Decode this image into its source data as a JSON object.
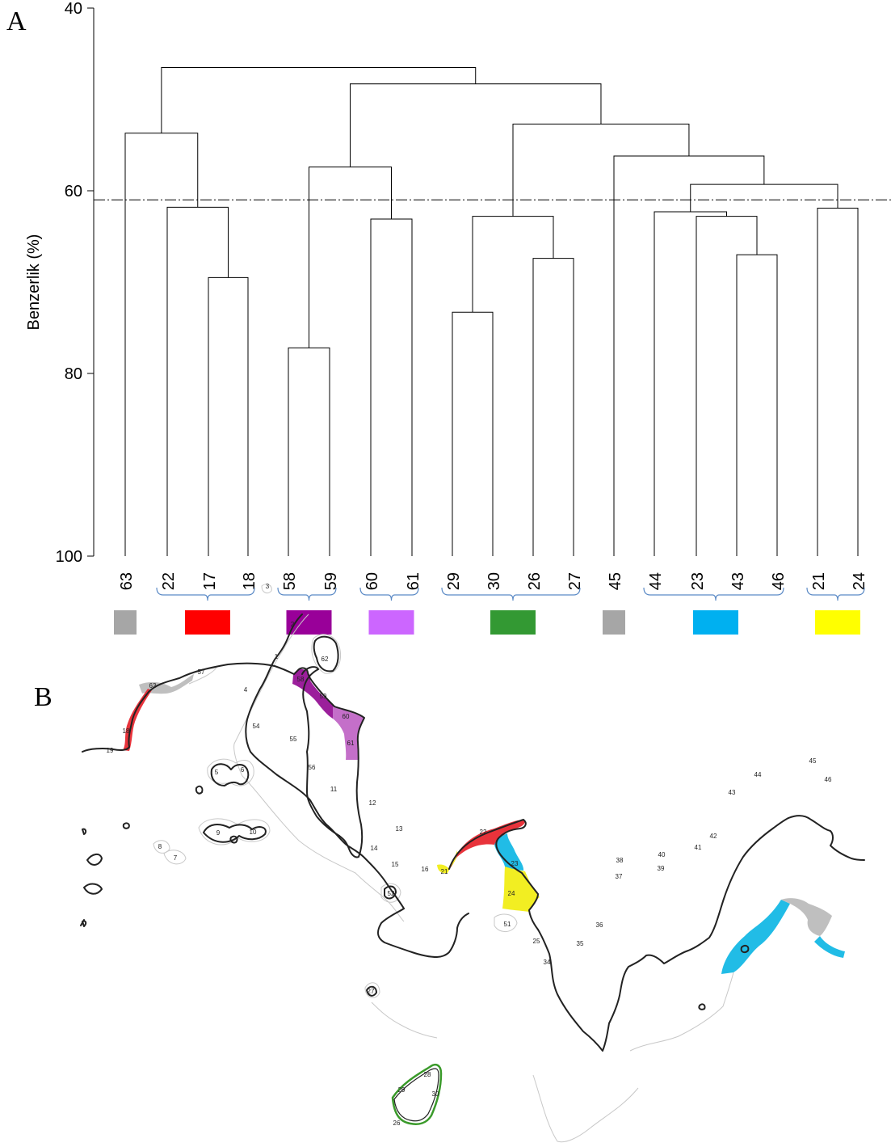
{
  "panels": {
    "a_label": "A",
    "b_label": "B"
  },
  "dendrogram": {
    "ylabel": "Benzerlik (%)",
    "ylim": [
      40,
      100
    ],
    "y_ticks": [
      "40",
      "60",
      "80",
      "100"
    ],
    "cutoff": 61,
    "leaves": [
      "63",
      "22",
      "17",
      "18",
      "58",
      "59",
      "60",
      "61",
      "29",
      "30",
      "26",
      "27",
      "45",
      "44",
      "23",
      "43",
      "46",
      "21",
      "24"
    ],
    "merges": [
      {
        "a": "L17",
        "b": "L18",
        "h": 69.5
      },
      {
        "a": "L22",
        "b": "M0",
        "h": 61.8
      },
      {
        "a": "L63",
        "b": "M1",
        "h": 53.7
      },
      {
        "a": "L58",
        "b": "L59",
        "h": 77.2
      },
      {
        "a": "L60",
        "b": "L61",
        "h": 63.1
      },
      {
        "a": "M3",
        "b": "M4",
        "h": 57.4
      },
      {
        "a": "L29",
        "b": "L30",
        "h": 73.3
      },
      {
        "a": "L26",
        "b": "L27",
        "h": 67.4
      },
      {
        "a": "M6",
        "b": "M7",
        "h": 62.8
      },
      {
        "a": "L43",
        "b": "L46",
        "h": 67.0
      },
      {
        "a": "L23",
        "b": "M9",
        "h": 62.8
      },
      {
        "a": "L44",
        "b": "M10",
        "h": 62.3
      },
      {
        "a": "L21",
        "b": "L24",
        "h": 61.9
      },
      {
        "a": "M11",
        "b": "M12",
        "h": 59.3
      },
      {
        "a": "M13",
        "b": "L45",
        "h": 56.2
      },
      {
        "a": "M8",
        "b": "M14",
        "h": 52.7
      },
      {
        "a": "M5",
        "b": "M15",
        "h": 48.3
      },
      {
        "a": "M2",
        "b": "M16",
        "h": 46.5
      }
    ],
    "groups": [
      {
        "from": "63",
        "to": "63",
        "bracket": false,
        "color": "#a6a6a6"
      },
      {
        "from": "22",
        "to": "18",
        "bracket": true,
        "color": "#ff0000"
      },
      {
        "from": "58",
        "to": "59",
        "bracket": true,
        "color": "#990099"
      },
      {
        "from": "60",
        "to": "61",
        "bracket": true,
        "color": "#cc66ff"
      },
      {
        "from": "29",
        "to": "27",
        "bracket": true,
        "color": "#339933"
      },
      {
        "from": "45",
        "to": "45",
        "bracket": false,
        "color": "#a6a6a6"
      },
      {
        "from": "44",
        "to": "46",
        "bracket": true,
        "color": "#00b0f0"
      },
      {
        "from": "21",
        "to": "24",
        "bracket": true,
        "color": "#ffff00"
      }
    ]
  },
  "map": {
    "colors": {
      "grey": "#bfbfbf",
      "red": "#e8333b",
      "purple": "#9b1f9b",
      "lilac": "#c46fc9",
      "green": "#3a9a2a",
      "blue": "#21bce6",
      "yellow": "#f2ee22"
    },
    "labels": [
      "57",
      "63",
      "58",
      "59",
      "60",
      "61",
      "18",
      "19",
      "2",
      "3",
      "1",
      "62",
      "4",
      "54",
      "55",
      "56",
      "5",
      "6",
      "11",
      "12",
      "13",
      "14",
      "15",
      "16",
      "21",
      "22",
      "23",
      "24",
      "8",
      "7",
      "9",
      "10",
      "52",
      "51",
      "25",
      "35",
      "36",
      "34",
      "37",
      "38",
      "39",
      "40",
      "41",
      "42",
      "43",
      "44",
      "45",
      "46",
      "26",
      "27",
      "28",
      "29",
      "30"
    ]
  }
}
